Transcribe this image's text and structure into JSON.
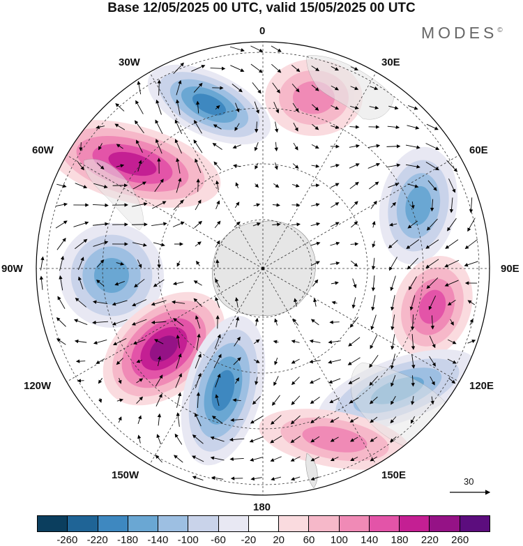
{
  "title": "Base 12/05/2025 00 UTC, valid 15/05/2025 00 UTC",
  "logo": {
    "text": "MODES",
    "mark": "©"
  },
  "longitude_labels": {
    "n0": "0",
    "n30e": "30E",
    "n60e": "60E",
    "n90e": "90E",
    "n120e": "120E",
    "n150e": "150E",
    "n180": "180",
    "n150w": "150W",
    "n120w": "120W",
    "n90w": "90W",
    "n60w": "60W",
    "n30w": "30W"
  },
  "reference_vector": {
    "label": "30"
  },
  "colorbar": {
    "colors": [
      "#0b3e5e",
      "#1f6496",
      "#3e88c0",
      "#6aa7d3",
      "#9dbfe2",
      "#c9d3ea",
      "#e8e8f3",
      "#ffffff",
      "#fadbdf",
      "#f6b8c9",
      "#f08ab6",
      "#e354a8",
      "#c41f93",
      "#951286",
      "#5c0d7e"
    ],
    "tick_labels": [
      "-260",
      "-220",
      "-180",
      "-140",
      "-100",
      "-60",
      "-20",
      "20",
      "60",
      "100",
      "140",
      "180",
      "220",
      "260"
    ]
  },
  "map": {
    "projection": "south polar stereographic",
    "field": "anomaly shading with wind vectors",
    "land_color": "#e6e6e6",
    "anomalies": [
      {
        "sign": "neg",
        "level": 3,
        "near": "30W"
      },
      {
        "sign": "pos",
        "level": 3,
        "near": "60W"
      },
      {
        "sign": "neg",
        "level": 2,
        "near": "90W"
      },
      {
        "sign": "pos",
        "level": 4,
        "near": "120W-150W"
      },
      {
        "sign": "neg",
        "level": 3,
        "near": "150W-180"
      },
      {
        "sign": "pos",
        "level": 1,
        "near": "30E"
      },
      {
        "sign": "neg",
        "level": 2,
        "near": "60E"
      },
      {
        "sign": "pos",
        "level": 2,
        "near": "90E"
      },
      {
        "sign": "neg",
        "level": 2,
        "near": "120E"
      },
      {
        "sign": "pos",
        "level": 1,
        "near": "150E"
      }
    ]
  }
}
